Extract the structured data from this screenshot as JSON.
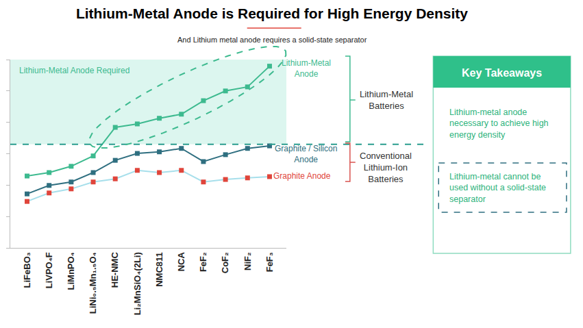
{
  "chart_data": {
    "type": "line",
    "title": "Lithium-Metal Anode is Required for High Energy Density",
    "subtitle": "And Lithium metal anode requires a solid-state separator",
    "categories": [
      "LiFeBO₃",
      "LiVPO₄F",
      "LiMnPO₄",
      "LiNi₀.₅Mn₁.₅O₄",
      "HE-NMC",
      "Li₂MnSiO₄(2Li)",
      "NMC811",
      "NCA",
      "FeF₂",
      "CoF₂",
      "NiF₂",
      "FeF₃"
    ],
    "series": [
      {
        "name": "Lithium-Metal Anode",
        "color": "#3dba8f",
        "marker": "square",
        "values": [
          2.29,
          2.4,
          2.6,
          2.93,
          3.84,
          3.95,
          4.13,
          4.26,
          4.69,
          5.0,
          5.13,
          5.79
        ]
      },
      {
        "name": "Graphite / Silicon Anode",
        "color": "#2f6f80",
        "marker": "square",
        "values": [
          1.72,
          1.99,
          2.1,
          2.4,
          2.79,
          3.01,
          3.06,
          3.17,
          2.75,
          2.97,
          3.17,
          3.25
        ]
      },
      {
        "name": "Graphite Anode",
        "color": "#e0453b",
        "marker": "square",
        "values": [
          1.48,
          1.75,
          1.88,
          2.1,
          2.2,
          2.47,
          2.4,
          2.47,
          2.1,
          2.18,
          2.23,
          2.27
        ]
      }
    ],
    "ylim": [
      0,
      6
    ],
    "yticks": [
      0,
      1,
      2,
      3,
      4,
      5,
      6
    ],
    "tick_labels": "x",
    "grid": false,
    "reference_line": 3.3,
    "region_label": "Lithium-Metal Anode Required",
    "groups": {
      "upper": "Lithium-Metal Batteries",
      "lower": "Conventional Lithium-Ion Batteries"
    },
    "key_takeaways": {
      "title": "Key Takeaways",
      "items": [
        "Lithium-metal anode necessary to achieve high energy density",
        "Lithium-metal cannot be used without a solid-state separator"
      ]
    }
  }
}
